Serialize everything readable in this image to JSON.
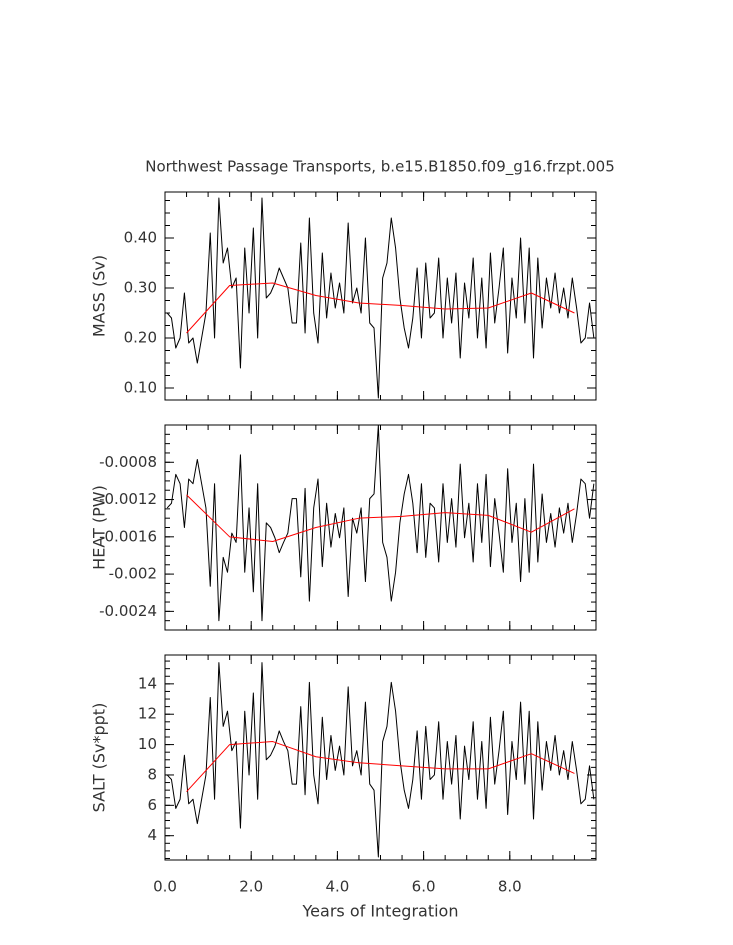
{
  "chart_data": [
    {
      "type": "line",
      "title": "Northwest Passage Transports, b.e15.B1850.f09_g16.frzpt.005",
      "ylabel": "MASS (Sv)",
      "xlim": [
        0,
        10
      ],
      "ylim": [
        0.076,
        0.492
      ],
      "yticks": [
        {
          "value": 0.1,
          "label": "0.10"
        },
        {
          "value": 0.2,
          "label": "0.20"
        },
        {
          "value": 0.3,
          "label": "0.30"
        },
        {
          "value": 0.4,
          "label": "0.40"
        }
      ],
      "series": [
        {
          "color": "#000000",
          "x": [
            0.05,
            0.15,
            0.25,
            0.35,
            0.45,
            0.55,
            0.65,
            0.75,
            0.85,
            0.95,
            1.05,
            1.15,
            1.25,
            1.35,
            1.45,
            1.55,
            1.65,
            1.75,
            1.85,
            1.95,
            2.05,
            2.15,
            2.25,
            2.35,
            2.45,
            2.55,
            2.65,
            2.75,
            2.85,
            2.95,
            3.05,
            3.15,
            3.25,
            3.35,
            3.45,
            3.55,
            3.65,
            3.75,
            3.85,
            3.95,
            4.05,
            4.15,
            4.25,
            4.35,
            4.45,
            4.55,
            4.65,
            4.75,
            4.85,
            4.95,
            5.05,
            5.15,
            5.25,
            5.35,
            5.45,
            5.55,
            5.65,
            5.75,
            5.85,
            5.95,
            6.05,
            6.15,
            6.25,
            6.35,
            6.45,
            6.55,
            6.65,
            6.75,
            6.85,
            6.95,
            7.05,
            7.15,
            7.25,
            7.35,
            7.45,
            7.55,
            7.65,
            7.75,
            7.85,
            7.95,
            8.05,
            8.15,
            8.25,
            8.35,
            8.45,
            8.55,
            8.65,
            8.75,
            8.85,
            8.95,
            9.05,
            9.15,
            9.25,
            9.35,
            9.45,
            9.55,
            9.65,
            9.75,
            9.85,
            9.95
          ],
          "values": [
            0.25,
            0.24,
            0.18,
            0.2,
            0.29,
            0.19,
            0.2,
            0.15,
            0.2,
            0.25,
            0.41,
            0.2,
            0.48,
            0.35,
            0.38,
            0.3,
            0.32,
            0.14,
            0.38,
            0.25,
            0.42,
            0.2,
            0.48,
            0.28,
            0.29,
            0.31,
            0.34,
            0.32,
            0.3,
            0.23,
            0.23,
            0.39,
            0.21,
            0.44,
            0.25,
            0.19,
            0.37,
            0.24,
            0.33,
            0.26,
            0.31,
            0.25,
            0.43,
            0.27,
            0.3,
            0.25,
            0.4,
            0.23,
            0.22,
            0.08,
            0.32,
            0.35,
            0.44,
            0.38,
            0.28,
            0.22,
            0.18,
            0.24,
            0.34,
            0.2,
            0.35,
            0.24,
            0.25,
            0.36,
            0.2,
            0.32,
            0.23,
            0.33,
            0.16,
            0.31,
            0.24,
            0.36,
            0.2,
            0.32,
            0.18,
            0.37,
            0.23,
            0.3,
            0.38,
            0.17,
            0.32,
            0.24,
            0.4,
            0.23,
            0.38,
            0.16,
            0.36,
            0.22,
            0.32,
            0.26,
            0.33,
            0.25,
            0.3,
            0.24,
            0.32,
            0.26,
            0.19,
            0.2,
            0.27,
            0.2
          ]
        },
        {
          "color": "#ff0000",
          "x": [
            0.5,
            1.5,
            2.5,
            3.5,
            4.5,
            5.5,
            6.5,
            7.5,
            8.5,
            9.5
          ],
          "values": [
            0.21,
            0.305,
            0.31,
            0.285,
            0.27,
            0.265,
            0.258,
            0.26,
            0.29,
            0.25
          ]
        }
      ]
    },
    {
      "type": "line",
      "ylabel": "HEAT (PW)",
      "xlim": [
        0,
        10
      ],
      "ylim": [
        -0.0026,
        -0.0004
      ],
      "yticks": [
        -0.0024,
        -0.002,
        -0.0016,
        -0.0012,
        -0.0008
      ],
      "series": [
        {
          "color": "#000000",
          "x": [
            0.05,
            0.15,
            0.25,
            0.35,
            0.45,
            0.55,
            0.65,
            0.75,
            0.85,
            0.95,
            1.05,
            1.15,
            1.25,
            1.35,
            1.45,
            1.55,
            1.65,
            1.75,
            1.85,
            1.95,
            2.05,
            2.15,
            2.25,
            2.35,
            2.45,
            2.55,
            2.65,
            2.75,
            2.85,
            2.95,
            3.05,
            3.15,
            3.25,
            3.35,
            3.45,
            3.55,
            3.65,
            3.75,
            3.85,
            3.95,
            4.05,
            4.15,
            4.25,
            4.35,
            4.45,
            4.55,
            4.65,
            4.75,
            4.85,
            4.95,
            5.05,
            5.15,
            5.25,
            5.35,
            5.45,
            5.55,
            5.65,
            5.75,
            5.85,
            5.95,
            6.05,
            6.15,
            6.25,
            6.35,
            6.45,
            6.55,
            6.65,
            6.75,
            6.85,
            6.95,
            7.05,
            7.15,
            7.25,
            7.35,
            7.45,
            7.55,
            7.65,
            7.75,
            7.85,
            7.95,
            8.05,
            8.15,
            8.25,
            8.35,
            8.45,
            8.55,
            8.65,
            8.75,
            8.85,
            8.95,
            9.05,
            9.15,
            9.25,
            9.35,
            9.45,
            9.55,
            9.65,
            9.75,
            9.85,
            9.95
          ],
          "values": [
            -0.00129,
            -0.00124,
            -0.00093,
            -0.00103,
            -0.0015,
            -0.00098,
            -0.00103,
            -0.00077,
            -0.00103,
            -0.00129,
            -0.00213,
            -0.00103,
            -0.0025,
            -0.00182,
            -0.00198,
            -0.00156,
            -0.00166,
            -0.00072,
            -0.00198,
            -0.00129,
            -0.00219,
            -0.00103,
            -0.0025,
            -0.00145,
            -0.0015,
            -0.00161,
            -0.00177,
            -0.00166,
            -0.00156,
            -0.00119,
            -0.00119,
            -0.00203,
            -0.00108,
            -0.00229,
            -0.00129,
            -0.00098,
            -0.00192,
            -0.00124,
            -0.00171,
            -0.00135,
            -0.00161,
            -0.00129,
            -0.00224,
            -0.0014,
            -0.00156,
            -0.00129,
            -0.00208,
            -0.00119,
            -0.00114,
            -0.0004,
            -0.00166,
            -0.00182,
            -0.00229,
            -0.00198,
            -0.00145,
            -0.00114,
            -0.00093,
            -0.00124,
            -0.00177,
            -0.00103,
            -0.00182,
            -0.00124,
            -0.00129,
            -0.00187,
            -0.00103,
            -0.00166,
            -0.00119,
            -0.00171,
            -0.00082,
            -0.00161,
            -0.00124,
            -0.00187,
            -0.00103,
            -0.00166,
            -0.00093,
            -0.00192,
            -0.00119,
            -0.00156,
            -0.00198,
            -0.00087,
            -0.00166,
            -0.00124,
            -0.00208,
            -0.00119,
            -0.00198,
            -0.00082,
            -0.00187,
            -0.00114,
            -0.00166,
            -0.00135,
            -0.00171,
            -0.00129,
            -0.00156,
            -0.00124,
            -0.00166,
            -0.00135,
            -0.00098,
            -0.00103,
            -0.0014,
            -0.00103
          ]
        },
        {
          "color": "#ff0000",
          "x": [
            0.5,
            1.5,
            2.5,
            3.5,
            4.5,
            5.5,
            6.5,
            7.5,
            8.5,
            9.5
          ],
          "values": [
            -0.00115,
            -0.0016,
            -0.00165,
            -0.0015,
            -0.0014,
            -0.00138,
            -0.00134,
            -0.00137,
            -0.00155,
            -0.0013
          ]
        }
      ]
    },
    {
      "type": "line",
      "ylabel": "SALT (Sv*ppt)",
      "xlabel": "Years of Integration",
      "xlim": [
        0,
        10
      ],
      "ylim": [
        2.4,
        15.9
      ],
      "xticks": [
        {
          "value": 0,
          "label": "0.0"
        },
        {
          "value": 2,
          "label": "2.0"
        },
        {
          "value": 4,
          "label": "4.0"
        },
        {
          "value": 6,
          "label": "6.0"
        },
        {
          "value": 8,
          "label": "8.0"
        }
      ],
      "yticks": [
        4,
        6,
        8,
        10,
        12,
        14
      ],
      "series": [
        {
          "color": "#000000",
          "x": [
            0.05,
            0.15,
            0.25,
            0.35,
            0.45,
            0.55,
            0.65,
            0.75,
            0.85,
            0.95,
            1.05,
            1.15,
            1.25,
            1.35,
            1.45,
            1.55,
            1.65,
            1.75,
            1.85,
            1.95,
            2.05,
            2.15,
            2.25,
            2.35,
            2.45,
            2.55,
            2.65,
            2.75,
            2.85,
            2.95,
            3.05,
            3.15,
            3.25,
            3.35,
            3.45,
            3.55,
            3.65,
            3.75,
            3.85,
            3.95,
            4.05,
            4.15,
            4.25,
            4.35,
            4.45,
            4.55,
            4.65,
            4.75,
            4.85,
            4.95,
            5.05,
            5.15,
            5.25,
            5.35,
            5.45,
            5.55,
            5.65,
            5.75,
            5.85,
            5.95,
            6.05,
            6.15,
            6.25,
            6.35,
            6.45,
            6.55,
            6.65,
            6.75,
            6.85,
            6.95,
            7.05,
            7.15,
            7.25,
            7.35,
            7.45,
            7.55,
            7.65,
            7.75,
            7.85,
            7.95,
            8.05,
            8.15,
            8.25,
            8.35,
            8.45,
            8.55,
            8.65,
            8.75,
            8.85,
            8.95,
            9.05,
            9.15,
            9.25,
            9.35,
            9.45,
            9.55,
            9.65,
            9.75,
            9.85,
            9.95
          ],
          "values": [
            8.0,
            7.7,
            5.8,
            6.4,
            9.3,
            6.1,
            6.4,
            4.8,
            6.4,
            8.0,
            13.1,
            6.4,
            15.4,
            11.2,
            12.2,
            9.6,
            10.2,
            4.5,
            12.2,
            8.0,
            13.4,
            6.4,
            15.4,
            9.0,
            9.3,
            9.9,
            10.9,
            10.2,
            9.6,
            7.4,
            7.4,
            12.5,
            6.7,
            14.1,
            8.0,
            6.1,
            11.8,
            7.7,
            10.6,
            8.3,
            9.9,
            8.0,
            13.8,
            8.6,
            9.6,
            8.0,
            12.8,
            7.4,
            7.0,
            2.6,
            10.2,
            11.2,
            14.1,
            12.2,
            9.0,
            7.0,
            5.8,
            7.7,
            10.9,
            6.4,
            11.2,
            7.7,
            8.0,
            11.5,
            6.4,
            10.2,
            7.4,
            10.6,
            5.1,
            9.9,
            7.7,
            11.5,
            6.4,
            10.2,
            5.8,
            11.8,
            7.4,
            9.6,
            12.2,
            5.4,
            10.2,
            7.7,
            12.8,
            7.4,
            12.2,
            5.1,
            11.5,
            7.0,
            10.2,
            8.3,
            10.6,
            8.0,
            9.6,
            7.7,
            10.2,
            8.3,
            6.1,
            6.4,
            8.6,
            6.4
          ]
        },
        {
          "color": "#ff0000",
          "x": [
            0.5,
            1.5,
            2.5,
            3.5,
            4.5,
            5.5,
            6.5,
            7.5,
            8.5,
            9.5
          ],
          "values": [
            6.9,
            10.0,
            10.2,
            9.2,
            8.8,
            8.6,
            8.4,
            8.4,
            9.4,
            8.1
          ]
        }
      ]
    }
  ]
}
